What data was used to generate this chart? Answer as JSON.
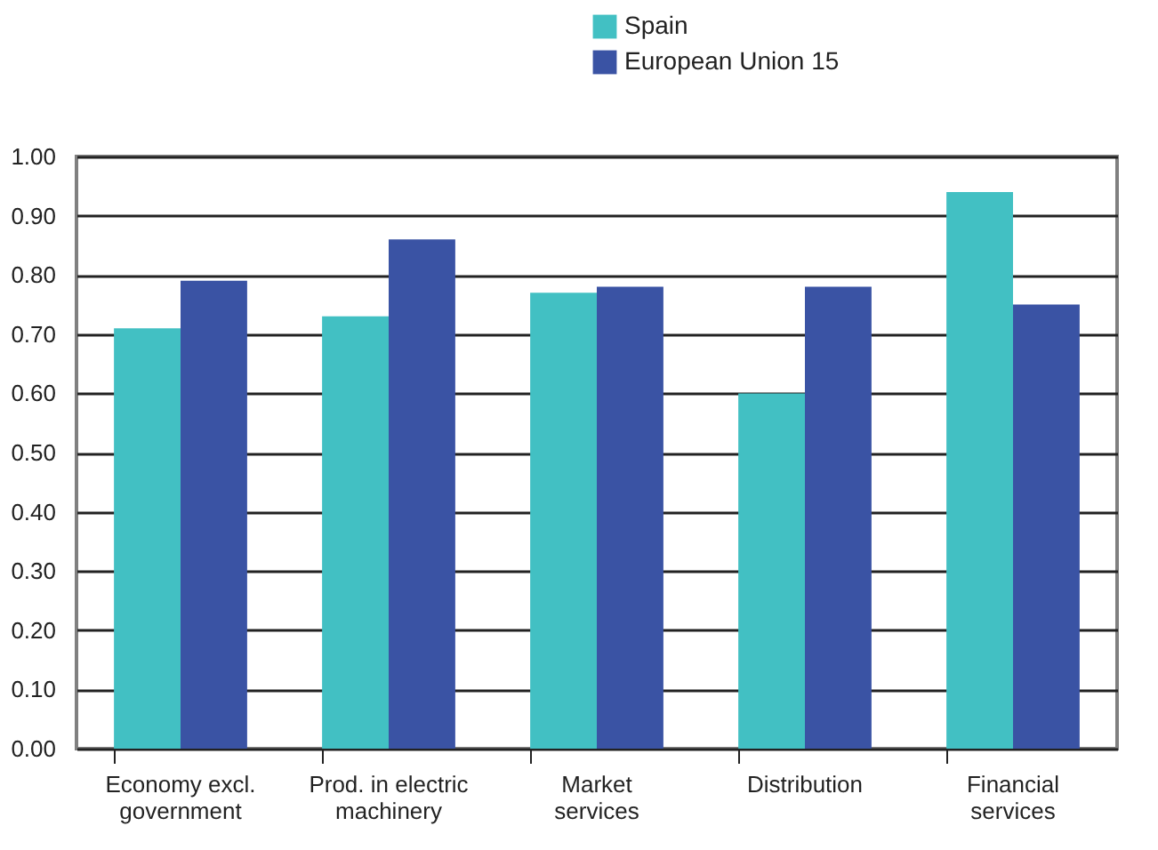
{
  "chart_data": {
    "type": "bar",
    "categories": [
      "Economy excl.\ngovernment",
      "Prod. in electric\nmachinery",
      "Market\nservices",
      "Distribution",
      "Financial\nservices"
    ],
    "series": [
      {
        "name": "Spain",
        "color": "#42c0c3",
        "values": [
          0.71,
          0.73,
          0.77,
          0.6,
          0.94
        ]
      },
      {
        "name": "European Union 15",
        "color": "#3a53a4",
        "values": [
          0.79,
          0.86,
          0.78,
          0.78,
          0.75
        ]
      }
    ],
    "ylim": [
      0,
      1
    ],
    "yticks": [
      {
        "value": 0,
        "label": "0.00"
      },
      {
        "value": 0.1,
        "label": "0.10"
      },
      {
        "value": 0.2,
        "label": "0.20"
      },
      {
        "value": 0.3,
        "label": "0.30"
      },
      {
        "value": 0.4,
        "label": "0.40"
      },
      {
        "value": 0.5,
        "label": "0.50"
      },
      {
        "value": 0.6,
        "label": "0.60"
      },
      {
        "value": 0.7,
        "label": "0.70"
      },
      {
        "value": 0.8,
        "label": "0.80"
      },
      {
        "value": 0.9,
        "label": "0.90"
      },
      {
        "value": 1,
        "label": "1.00"
      }
    ],
    "grid": "y",
    "legend": "top"
  }
}
